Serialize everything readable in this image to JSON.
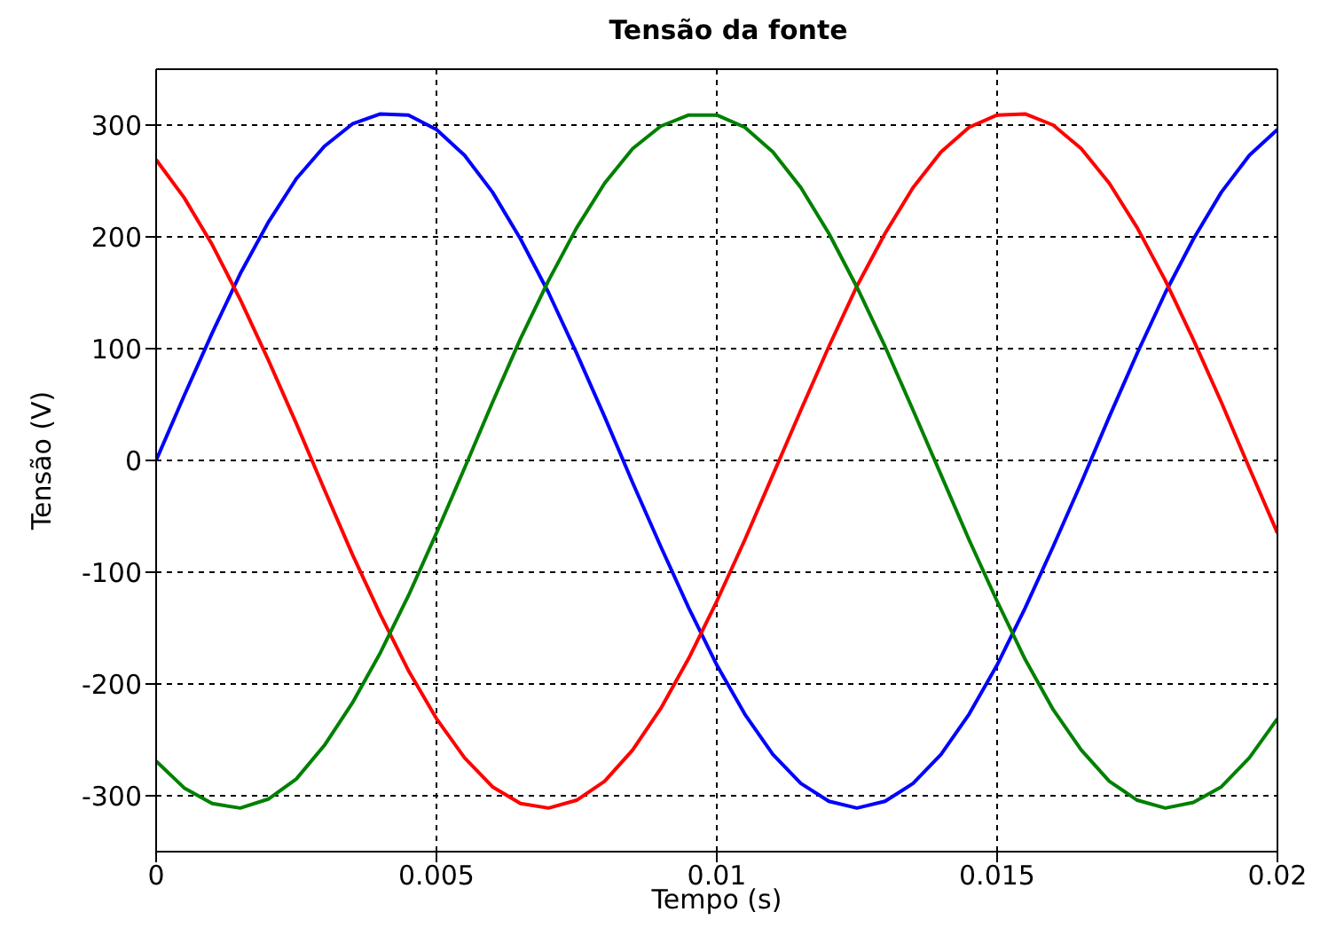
{
  "chart_data": {
    "type": "line",
    "title": "Tensão da fonte",
    "xlabel": "Tempo (s)",
    "ylabel": "Tensão (V)",
    "x": [
      0,
      0.0005,
      0.001,
      0.0015,
      0.002,
      0.0025,
      0.003,
      0.0035,
      0.004,
      0.0045,
      0.005,
      0.0055,
      0.006,
      0.0065,
      0.007,
      0.0075,
      0.008,
      0.0085,
      0.009,
      0.0095,
      0.01,
      0.0105,
      0.011,
      0.0115,
      0.012,
      0.0125,
      0.013,
      0.0135,
      0.014,
      0.0145,
      0.015,
      0.0155,
      0.016,
      0.0165,
      0.017,
      0.0175,
      0.018,
      0.0185,
      0.019,
      0.0195,
      0.02
    ],
    "series": [
      {
        "color": "#0000ff",
        "values": [
          0,
          58,
          114,
          167,
          213,
          252,
          281,
          301,
          310,
          309,
          296,
          273,
          240,
          198,
          150,
          96,
          39,
          -20,
          -77,
          -132,
          -183,
          -227,
          -263,
          -289,
          -305,
          -311,
          -305,
          -289,
          -263,
          -227,
          -183,
          -132,
          -77,
          -20,
          39,
          96,
          150,
          198,
          240,
          273,
          296
        ]
      },
      {
        "color": "#ff0000",
        "values": [
          269,
          235,
          193,
          144,
          90,
          33,
          -26,
          -84,
          -138,
          -188,
          -231,
          -266,
          -292,
          -307,
          -311,
          -304,
          -287,
          -259,
          -222,
          -177,
          -126,
          -71,
          -13,
          45,
          102,
          156,
          203,
          244,
          276,
          298,
          309,
          310,
          300,
          279,
          248,
          208,
          161,
          108,
          52,
          -7,
          -65
        ]
      },
      {
        "color": "#008000",
        "values": [
          -269,
          -293,
          -307,
          -311,
          -303,
          -285,
          -255,
          -217,
          -172,
          -121,
          -65,
          -7,
          52,
          109,
          161,
          208,
          248,
          279,
          299,
          309,
          309,
          298,
          276,
          244,
          203,
          155,
          102,
          45,
          -13,
          -71,
          -126,
          -178,
          -223,
          -259,
          -287,
          -304,
          -311,
          -306,
          -292,
          -266,
          -231
        ]
      }
    ],
    "xlim": [
      0,
      0.02
    ],
    "xticks": [
      0,
      0.005,
      0.01,
      0.015,
      0.02
    ],
    "ylim": [
      -350,
      350
    ],
    "yticks": [
      -300,
      -200,
      -100,
      0,
      100,
      200,
      300
    ],
    "grid": true,
    "line_style": "solid",
    "marker": "none",
    "legend": false
  }
}
